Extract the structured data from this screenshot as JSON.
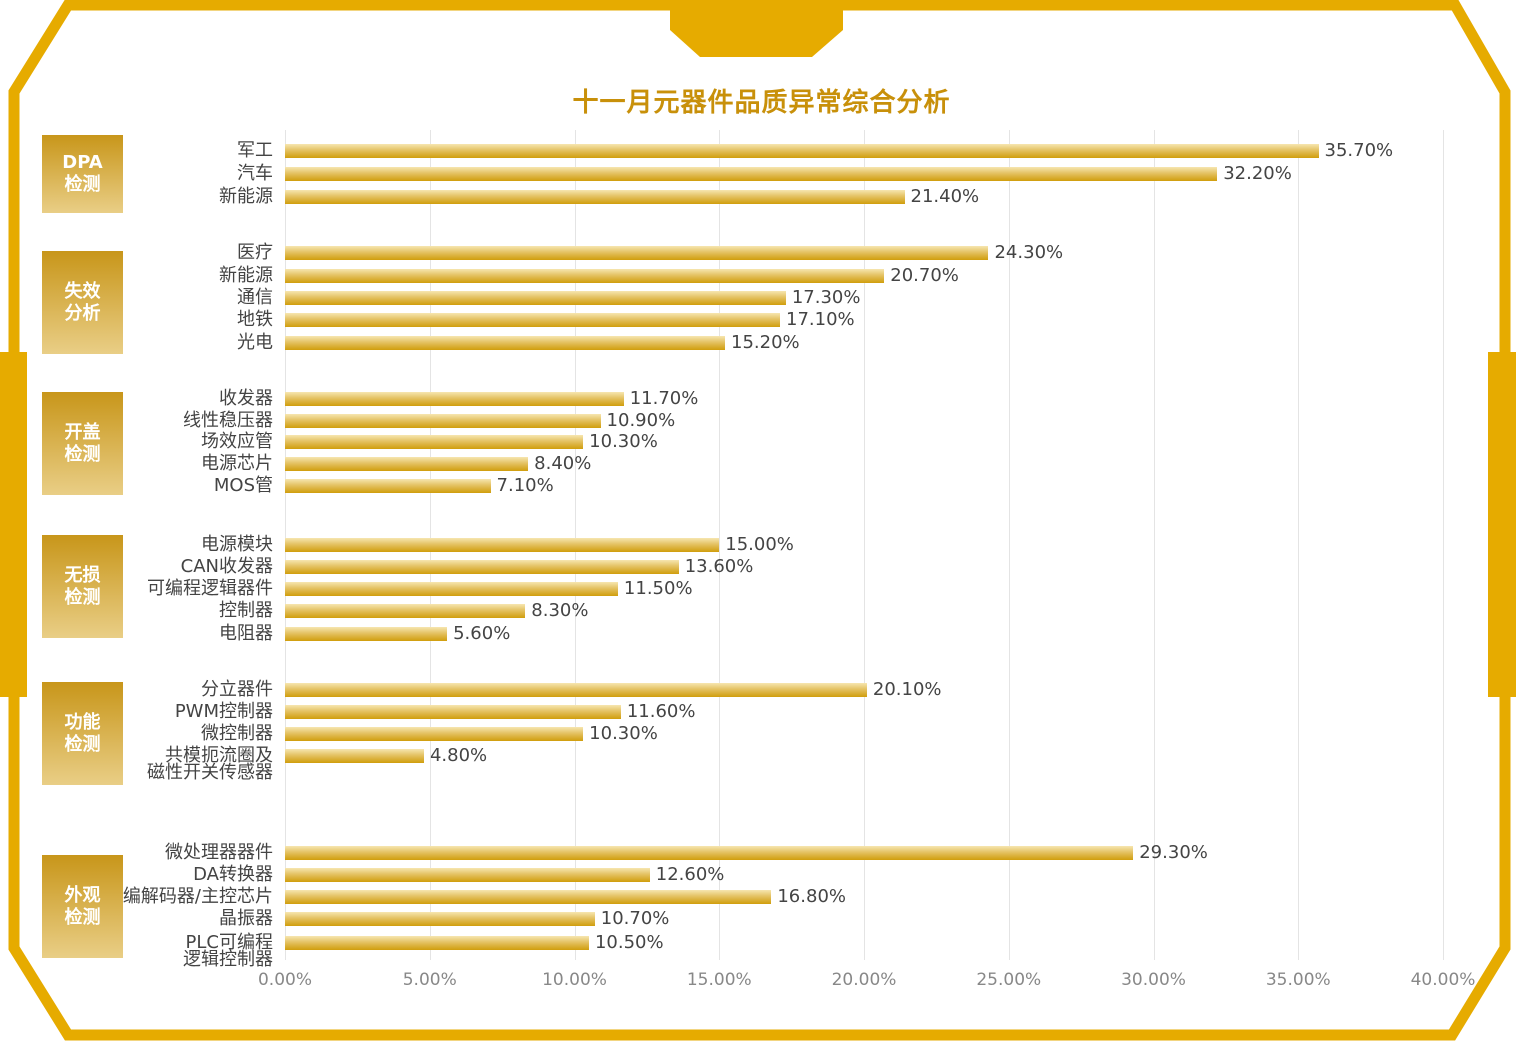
{
  "chart_data": {
    "type": "bar",
    "orientation": "horizontal",
    "title": "十一月元器件品质异常综合分析",
    "xlim": [
      0,
      40
    ],
    "x_ticks": [
      "0.00%",
      "5.00%",
      "10.00%",
      "15.00%",
      "20.00%",
      "25.00%",
      "30.00%",
      "35.00%",
      "40.00%"
    ],
    "grid": true,
    "colors": {
      "frame": "#E6AB00",
      "bar_top": "#F6E6B0",
      "bar_bottom": "#D09E0C",
      "title": "#C8900A"
    },
    "groups": [
      {
        "name": "DPA\n检测",
        "categories": [
          "军工",
          "汽车",
          "新能源"
        ],
        "values": [
          35.7,
          32.2,
          21.4
        ],
        "labels": [
          "35.70%",
          "32.20%",
          "21.40%"
        ]
      },
      {
        "name": "失效\n分析",
        "categories": [
          "医疗",
          "新能源",
          "通信",
          "地铁",
          "光电"
        ],
        "values": [
          24.3,
          20.7,
          17.3,
          17.1,
          15.2
        ],
        "labels": [
          "24.30%",
          "20.70%",
          "17.30%",
          "17.10%",
          "15.20%"
        ]
      },
      {
        "name": "开盖\n检测",
        "categories": [
          "收发器",
          "线性稳压器",
          "场效应管",
          "电源芯片",
          "MOS管"
        ],
        "values": [
          11.7,
          10.9,
          10.3,
          8.4,
          7.1
        ],
        "labels": [
          "11.70%",
          "10.90%",
          "10.30%",
          "8.40%",
          "7.10%"
        ]
      },
      {
        "name": "无损\n检测",
        "categories": [
          "电源模块",
          "CAN收发器",
          "可编程逻辑器件",
          "控制器",
          "电阻器"
        ],
        "values": [
          15.0,
          13.6,
          11.5,
          8.3,
          5.6
        ],
        "labels": [
          "15.00%",
          "13.60%",
          "11.50%",
          "8.30%",
          "5.60%"
        ]
      },
      {
        "name": "功能\n检测",
        "categories": [
          "分立器件",
          "PWM控制器",
          "微控制器",
          "共模扼流圈及\n磁性开关传感器"
        ],
        "values": [
          20.1,
          11.6,
          10.3,
          4.8
        ],
        "labels": [
          "20.10%",
          "11.60%",
          "10.30%",
          "4.80%"
        ]
      },
      {
        "name": "外观\n检测",
        "categories": [
          "微处理器器件",
          "DA转换器",
          "编解码器/主控芯片",
          "晶振器",
          "PLC可编程\n逻辑控制器"
        ],
        "values": [
          29.3,
          12.6,
          16.8,
          10.7,
          10.5
        ],
        "labels": [
          "29.30%",
          "12.60%",
          "16.80%",
          "10.70%",
          "10.50%"
        ]
      }
    ]
  }
}
